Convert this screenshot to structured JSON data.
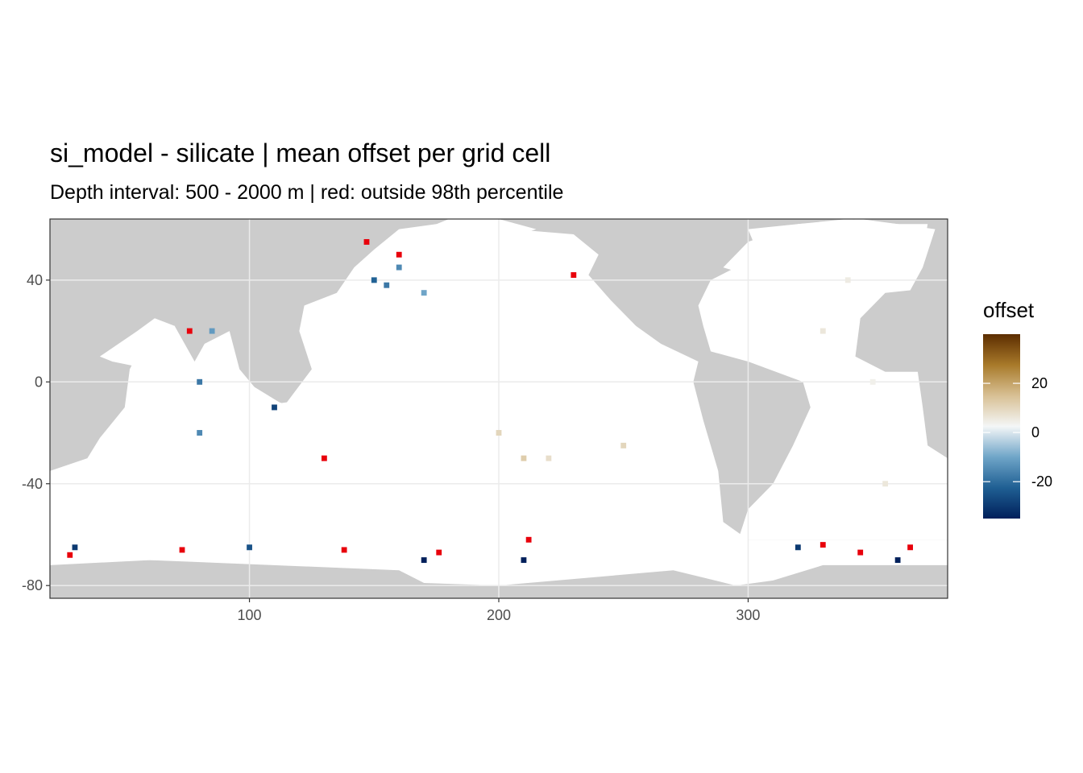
{
  "chart_data": {
    "type": "heatmap",
    "title": "si_model - silicate  | mean offset per grid cell",
    "subtitle": "Depth interval: 500 - 2000 m | red: outside 98th percentile",
    "xlim": [
      20,
      380
    ],
    "ylim": [
      -85,
      64
    ],
    "x_ticks": [
      100,
      200,
      300
    ],
    "y_ticks": [
      40,
      0,
      -40,
      -80
    ],
    "grid": true,
    "legend": {
      "title": "offset",
      "position": "right",
      "ticks": [
        20,
        0,
        -20
      ],
      "range": [
        -35,
        40
      ],
      "colors": [
        "#00205b",
        "#1f5f93",
        "#6fa5c8",
        "#f4f6f7",
        "#d8c094",
        "#a87a2a",
        "#5c2d00"
      ]
    },
    "colors": {
      "land": "#cccccc",
      "ocean": "#ffffff",
      "outlier": "#e8000b",
      "gridline": "#ebebeb",
      "border": "#333333"
    },
    "sample_cells": {
      "columns": [
        "lon",
        "lat",
        "offset"
      ],
      "rows": [
        [
          150,
          40,
          -22
        ],
        [
          155,
          38,
          -18
        ],
        [
          160,
          45,
          -15
        ],
        [
          170,
          35,
          -10
        ],
        [
          85,
          20,
          -12
        ],
        [
          80,
          0,
          -18
        ],
        [
          80,
          -20,
          -15
        ],
        [
          110,
          -10,
          -28
        ],
        [
          200,
          -20,
          10
        ],
        [
          210,
          -30,
          12
        ],
        [
          220,
          -30,
          8
        ],
        [
          250,
          -25,
          10
        ],
        [
          330,
          20,
          6
        ],
        [
          340,
          40,
          5
        ],
        [
          350,
          0,
          4
        ],
        [
          355,
          -40,
          6
        ],
        [
          170,
          -70,
          -35
        ],
        [
          210,
          -70,
          -35
        ],
        [
          320,
          -65,
          -30
        ],
        [
          360,
          -70,
          -35
        ],
        [
          30,
          -65,
          -30
        ],
        [
          100,
          -65,
          -25
        ]
      ]
    },
    "outlier_cells": {
      "columns": [
        "lon",
        "lat"
      ],
      "rows": [
        [
          147,
          55
        ],
        [
          160,
          50
        ],
        [
          230,
          42
        ],
        [
          76,
          20
        ],
        [
          130,
          -30
        ],
        [
          28,
          -68
        ],
        [
          73,
          -66
        ],
        [
          138,
          -66
        ],
        [
          176,
          -67
        ],
        [
          330,
          -64
        ],
        [
          345,
          -67
        ],
        [
          365,
          -65
        ],
        [
          212,
          -62
        ]
      ]
    }
  }
}
